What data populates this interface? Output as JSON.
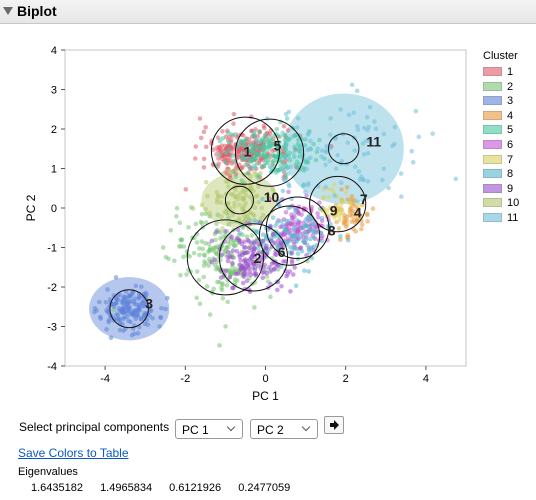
{
  "header": {
    "title": "Biplot"
  },
  "chart_data": {
    "type": "scatter",
    "xlabel": "PC 1",
    "ylabel": "PC 2",
    "xlim": [
      -5,
      5
    ],
    "ylim": [
      -4,
      4
    ],
    "xticks": [
      -4,
      -2,
      0,
      2,
      4
    ],
    "yticks": [
      -4,
      -3,
      -2,
      -1,
      0,
      1,
      2,
      3,
      4
    ],
    "grid": false,
    "legend_title": "Cluster",
    "legend_placement": "right",
    "clusters": [
      {
        "label": "1",
        "color": "#e05c6b",
        "center": [
          -0.5,
          1.45
        ],
        "spread": [
          0.55,
          0.28
        ],
        "n": 260,
        "ellipse": null,
        "circle_r": 0.85
      },
      {
        "label": "2",
        "color": "#7cc576",
        "center": [
          -1.0,
          -1.25
        ],
        "spread": [
          0.65,
          0.55
        ],
        "n": 220,
        "ellipse": null,
        "circle_r": 0.95
      },
      {
        "label": "3",
        "color": "#5e83d8",
        "center": [
          -3.4,
          -2.55
        ],
        "spread": [
          0.35,
          0.28
        ],
        "n": 170,
        "ellipse": [
          1.0,
          0.8
        ],
        "circle_r": 0.48
      },
      {
        "label": "4",
        "color": "#e89a3a",
        "center": [
          2.1,
          -0.15
        ],
        "spread": [
          0.22,
          0.28
        ],
        "n": 60,
        "ellipse": null,
        "circle_r": 0
      },
      {
        "label": "5",
        "color": "#45c9a1",
        "center": [
          0.1,
          1.4
        ],
        "spread": [
          0.55,
          0.3
        ],
        "n": 200,
        "ellipse": null,
        "circle_r": 0.85
      },
      {
        "label": "6",
        "color": "#c553d6",
        "center": [
          0.8,
          -0.5
        ],
        "spread": [
          0.35,
          0.3
        ],
        "n": 130,
        "ellipse": null,
        "circle_r": 0.78
      },
      {
        "label": "7",
        "color": "#ddd15e",
        "center": [
          1.8,
          0.1
        ],
        "spread": [
          0.2,
          0.25
        ],
        "n": 40,
        "ellipse": null,
        "circle_r": 0.7
      },
      {
        "label": "8",
        "color": "#55b8cc",
        "center": [
          0.6,
          -0.7
        ],
        "spread": [
          0.5,
          0.4
        ],
        "n": 140,
        "ellipse": null,
        "circle_r": 0.75
      },
      {
        "label": "9",
        "color": "#9b4fd0",
        "center": [
          -0.3,
          -1.25
        ],
        "spread": [
          0.5,
          0.4
        ],
        "n": 160,
        "ellipse": null,
        "circle_r": 0.85
      },
      {
        "label": "10",
        "color": "#b3c76a",
        "center": [
          -0.65,
          0.2
        ],
        "spread": [
          0.45,
          0.35
        ],
        "n": 110,
        "ellipse": [
          0.95,
          0.7
        ],
        "circle_r": 0.35
      },
      {
        "label": "11",
        "color": "#6fbfd8",
        "center": [
          1.95,
          1.5
        ],
        "spread": [
          1.0,
          0.6
        ],
        "n": 110,
        "ellipse": [
          1.5,
          1.4
        ],
        "circle_r": 0.38
      }
    ],
    "point_labels": [
      {
        "text": "1",
        "x": -0.45,
        "y": 1.4
      },
      {
        "text": "5",
        "x": 0.3,
        "y": 1.55
      },
      {
        "text": "11",
        "x": 2.7,
        "y": 1.65
      },
      {
        "text": "10",
        "x": 0.15,
        "y": 0.25
      },
      {
        "text": "7",
        "x": 2.45,
        "y": 0.2
      },
      {
        "text": "9",
        "x": 1.7,
        "y": -0.1
      },
      {
        "text": "4",
        "x": 2.3,
        "y": -0.15
      },
      {
        "text": "8",
        "x": 1.65,
        "y": -0.6
      },
      {
        "text": "6",
        "x": 0.4,
        "y": -1.15
      },
      {
        "text": "2",
        "x": -0.2,
        "y": -1.3
      },
      {
        "text": "3",
        "x": -2.9,
        "y": -2.45
      }
    ]
  },
  "controls": {
    "select_label": "Select principal components",
    "pc_x": "PC 1",
    "pc_y": "PC 2",
    "save_link": "Save Colors to Table"
  },
  "eigenvalues": {
    "label": "Eigenvalues",
    "values": [
      "1.6435182",
      "1.4965834",
      "0.6121926",
      "0.2477059"
    ]
  }
}
